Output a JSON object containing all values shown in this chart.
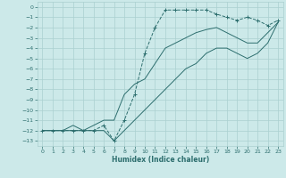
{
  "xlabel": "Humidex (Indice chaleur)",
  "bg_color": "#cce9e9",
  "grid_color": "#aad0d0",
  "line_color": "#2d6e6e",
  "xlim": [
    -0.5,
    23.5
  ],
  "ylim": [
    -13.5,
    0.5
  ],
  "xticks": [
    0,
    1,
    2,
    3,
    4,
    5,
    6,
    7,
    8,
    9,
    10,
    11,
    12,
    13,
    14,
    15,
    16,
    17,
    18,
    19,
    20,
    21,
    22,
    23
  ],
  "yticks": [
    0,
    -1,
    -2,
    -3,
    -4,
    -5,
    -6,
    -7,
    -8,
    -9,
    -10,
    -11,
    -12,
    -13
  ],
  "series": {
    "max": {
      "x": [
        0,
        1,
        2,
        3,
        4,
        5,
        6,
        7,
        8,
        9,
        10,
        11,
        12,
        13,
        14,
        15,
        16,
        17,
        18,
        19,
        20,
        21,
        22,
        23
      ],
      "y": [
        -12,
        -12,
        -12,
        -12,
        -12,
        -12,
        -11.5,
        -13,
        -11,
        -8.5,
        -4.5,
        -2,
        -0.3,
        -0.3,
        -0.3,
        -0.3,
        -0.3,
        -0.7,
        -1,
        -1.3,
        -1,
        -1.3,
        -1.8,
        -1.3
      ]
    },
    "avg": {
      "x": [
        0,
        1,
        2,
        3,
        4,
        5,
        6,
        7,
        8,
        9,
        10,
        11,
        12,
        13,
        14,
        15,
        16,
        17,
        18,
        19,
        20,
        21,
        22,
        23
      ],
      "y": [
        -12,
        -12,
        -12,
        -11.5,
        -12,
        -11.5,
        -11,
        -11,
        -8.5,
        -7.5,
        -7,
        -5.5,
        -4,
        -3.5,
        -3,
        -2.5,
        -2.2,
        -2,
        -2.5,
        -3,
        -3.5,
        -3.5,
        -2.5,
        -1.5
      ]
    },
    "min": {
      "x": [
        0,
        1,
        2,
        3,
        4,
        5,
        6,
        7,
        8,
        9,
        10,
        11,
        12,
        13,
        14,
        15,
        16,
        17,
        18,
        19,
        20,
        21,
        22,
        23
      ],
      "y": [
        -12,
        -12,
        -12,
        -12,
        -12,
        -12,
        -12,
        -13,
        -12,
        -11,
        -10,
        -9,
        -8,
        -7,
        -6,
        -5.5,
        -4.5,
        -4,
        -4,
        -4.5,
        -5,
        -4.5,
        -3.5,
        -1.5
      ]
    }
  }
}
